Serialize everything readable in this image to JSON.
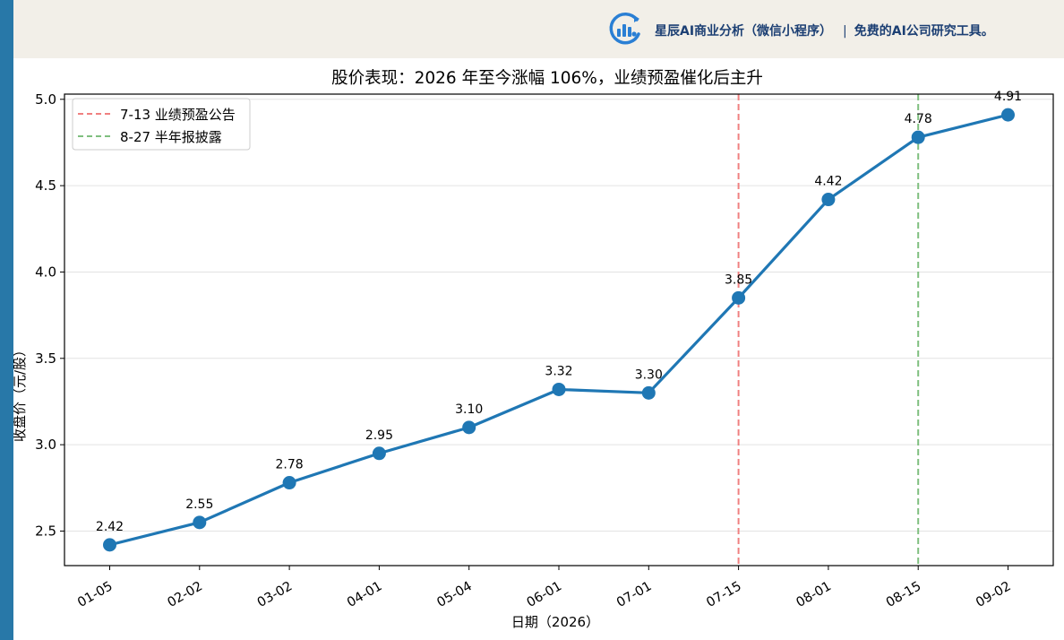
{
  "header": {
    "brand_name": "星辰AI商业分析（微信小程序）",
    "separator": "|",
    "tagline": "免费的AI公司研究工具。",
    "logo_icon": "chart-bars-circle-icon",
    "colors": {
      "accent": "#1c3f73",
      "logo": "#2a7fd4",
      "stripe": "#2878a8",
      "header_bg": "#f2efe8"
    }
  },
  "chart_data": {
    "type": "line",
    "title": "股价表现：2026 年至今涨幅 106%，业绩预盈催化后主升",
    "xlabel": "日期（2026）",
    "ylabel": "收盘价（元/股）",
    "categories": [
      "01-05",
      "02-02",
      "03-02",
      "04-01",
      "05-04",
      "06-01",
      "07-01",
      "07-15",
      "08-01",
      "08-15",
      "09-02"
    ],
    "series": [
      {
        "values": [
          2.42,
          2.55,
          2.78,
          2.95,
          3.1,
          3.32,
          3.3,
          3.85,
          4.42,
          4.78,
          4.91
        ],
        "color": "#1f77b4"
      }
    ],
    "data_labels": [
      "2.42",
      "2.55",
      "2.78",
      "2.95",
      "3.10",
      "3.32",
      "3.30",
      "3.85",
      "4.42",
      "4.78",
      "4.91"
    ],
    "ylim": [
      2.3,
      5.03
    ],
    "yticks": [
      2.5,
      3.0,
      3.5,
      4.0,
      4.5,
      5.0
    ],
    "ytick_labels": [
      "2.5",
      "3.0",
      "3.5",
      "4.0",
      "4.5",
      "5.0"
    ],
    "grid": "horizontal",
    "legend_position": "top-left",
    "vlines": [
      {
        "at": "07-15",
        "label": "7-13 业绩预盈公告",
        "color": "#f08080",
        "style": "dashed"
      },
      {
        "at": "08-15",
        "label": "8-27 半年报披露",
        "color": "#7fbf7f",
        "style": "dashed"
      }
    ]
  }
}
